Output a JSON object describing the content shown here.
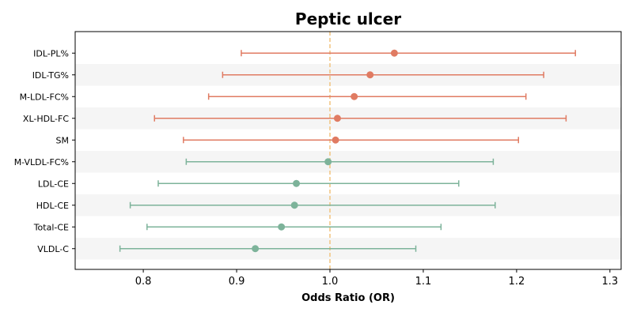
{
  "chart_data": {
    "type": "forest",
    "title": "Peptic ulcer",
    "xlabel": "Odds Ratio (OR)",
    "ylabel": "",
    "xlim": [
      0.727,
      1.312
    ],
    "xticks": [
      0.8,
      0.9,
      1.0,
      1.1,
      1.2,
      1.3
    ],
    "xtick_labels": [
      "0.8",
      "0.9",
      "1.0",
      "1.1",
      "1.2",
      "1.3"
    ],
    "reference_line": 1.0,
    "colors": {
      "risk": "#e07b62",
      "protective": "#7db39a",
      "reference": "#f2c47f",
      "band": "#f5f5f5"
    },
    "rows": [
      {
        "label": "IDL-PL%",
        "or": 1.069,
        "lower": 0.905,
        "upper": 1.263,
        "group": "risk"
      },
      {
        "label": "IDL-TG%",
        "or": 1.043,
        "lower": 0.885,
        "upper": 1.229,
        "group": "risk"
      },
      {
        "label": "M-LDL-FC%",
        "or": 1.026,
        "lower": 0.87,
        "upper": 1.21,
        "group": "risk"
      },
      {
        "label": "XL-HDL-FC",
        "or": 1.008,
        "lower": 0.812,
        "upper": 1.253,
        "group": "risk"
      },
      {
        "label": "SM",
        "or": 1.006,
        "lower": 0.843,
        "upper": 1.202,
        "group": "risk"
      },
      {
        "label": "M-VLDL-FC%",
        "or": 0.998,
        "lower": 0.846,
        "upper": 1.175,
        "group": "protective"
      },
      {
        "label": "LDL-CE",
        "or": 0.964,
        "lower": 0.816,
        "upper": 1.138,
        "group": "protective"
      },
      {
        "label": "HDL-CE",
        "or": 0.962,
        "lower": 0.786,
        "upper": 1.177,
        "group": "protective"
      },
      {
        "label": "Total-CE",
        "or": 0.948,
        "lower": 0.804,
        "upper": 1.119,
        "group": "protective"
      },
      {
        "label": "VLDL-C",
        "or": 0.92,
        "lower": 0.775,
        "upper": 1.092,
        "group": "protective"
      }
    ]
  }
}
